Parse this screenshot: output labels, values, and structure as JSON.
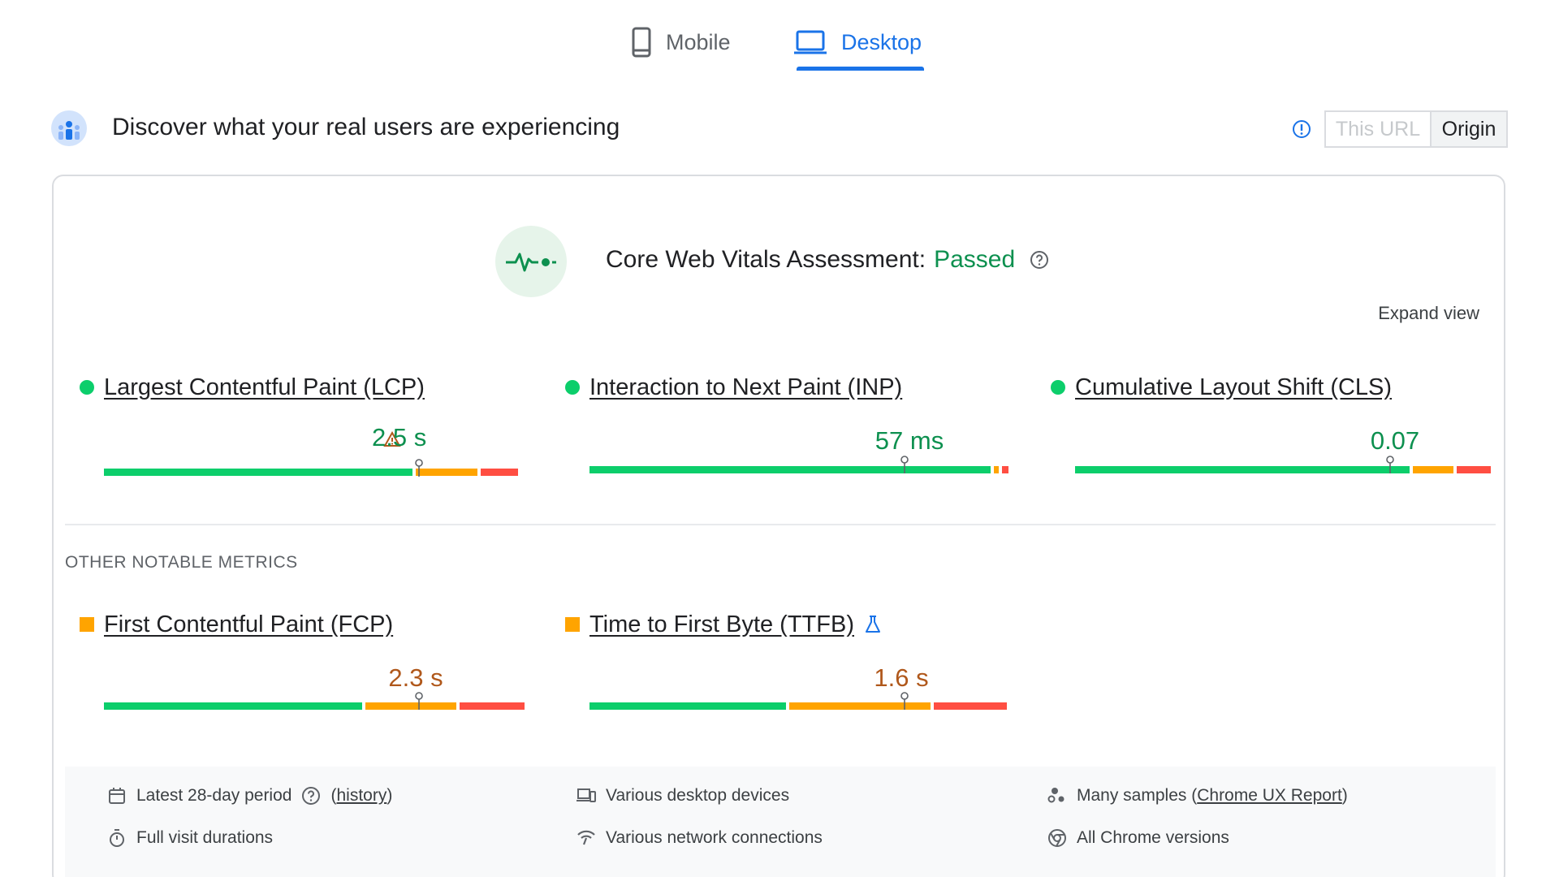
{
  "tabs": {
    "mobile": "Mobile",
    "desktop": "Desktop",
    "active": "Desktop"
  },
  "header": {
    "title": "Discover what your real users are experiencing",
    "toggle": {
      "this_url": "This URL",
      "origin": "Origin",
      "selected": "Origin"
    }
  },
  "assessment": {
    "prefix": "Core Web Vitals Assessment:",
    "status": "Passed",
    "expand": "Expand view"
  },
  "core_metrics": [
    {
      "name": "Largest Contentful Paint (LCP)",
      "value": "2.5 s",
      "value_color": "#0d904f",
      "warning": true,
      "segments": [
        {
          "color": "green",
          "fraction": 0.73
        },
        {
          "color": "orange",
          "fraction": 0.15
        },
        {
          "color": "red",
          "fraction": 0.09
        }
      ],
      "marker": 0.75
    },
    {
      "name": "Interaction to Next Paint (INP)",
      "value": "57 ms",
      "value_color": "#0d904f",
      "warning": false,
      "segments": [
        {
          "color": "green",
          "fraction": 0.95
        },
        {
          "color": "orange",
          "fraction": 0.015
        },
        {
          "color": "red",
          "fraction": 0.015
        }
      ],
      "marker": 0.75
    },
    {
      "name": "Cumulative Layout Shift (CLS)",
      "value": "0.07",
      "value_color": "#0d904f",
      "warning": false,
      "segments": [
        {
          "color": "green",
          "fraction": 0.79
        },
        {
          "color": "orange",
          "fraction": 0.1
        },
        {
          "color": "red",
          "fraction": 0.09
        }
      ],
      "marker": 0.75
    }
  ],
  "other": {
    "title": "OTHER NOTABLE METRICS",
    "metrics": [
      {
        "name": "First Contentful Paint (FCP)",
        "value": "2.3 s",
        "value_color": "#b0581b",
        "segments": [
          {
            "color": "green",
            "fraction": 0.62
          },
          {
            "color": "orange",
            "fraction": 0.22
          },
          {
            "color": "red",
            "fraction": 0.16
          }
        ],
        "marker": 0.75,
        "lab": false
      },
      {
        "name": "Time to First Byte (TTFB)",
        "value": "1.6 s",
        "value_color": "#b0581b",
        "segments": [
          {
            "color": "green",
            "fraction": 0.47
          },
          {
            "color": "orange",
            "fraction": 0.34
          },
          {
            "color": "red",
            "fraction": 0.18
          }
        ],
        "marker": 0.75,
        "lab": true
      }
    ]
  },
  "footer": {
    "period": "Latest 28-day period",
    "history": "history",
    "durations": "Full visit durations",
    "devices": "Various desktop devices",
    "network": "Various network connections",
    "samples_prefix": "Many samples (",
    "samples_link": "Chrome UX Report",
    "samples_suffix": ")",
    "chrome": "All Chrome versions"
  },
  "colors": {
    "accent": "#1a73e8",
    "good": "#0cce6b",
    "average": "#ffa400",
    "poor": "#ff4e42"
  },
  "icons": [
    "mobile-icon",
    "laptop-icon",
    "crux-users-icon",
    "info-icon",
    "pulse-icon",
    "help-icon",
    "warning-icon",
    "flask-icon",
    "calendar-icon",
    "stopwatch-icon",
    "devices-icon",
    "network-icon",
    "people-icon",
    "chrome-icon"
  ]
}
